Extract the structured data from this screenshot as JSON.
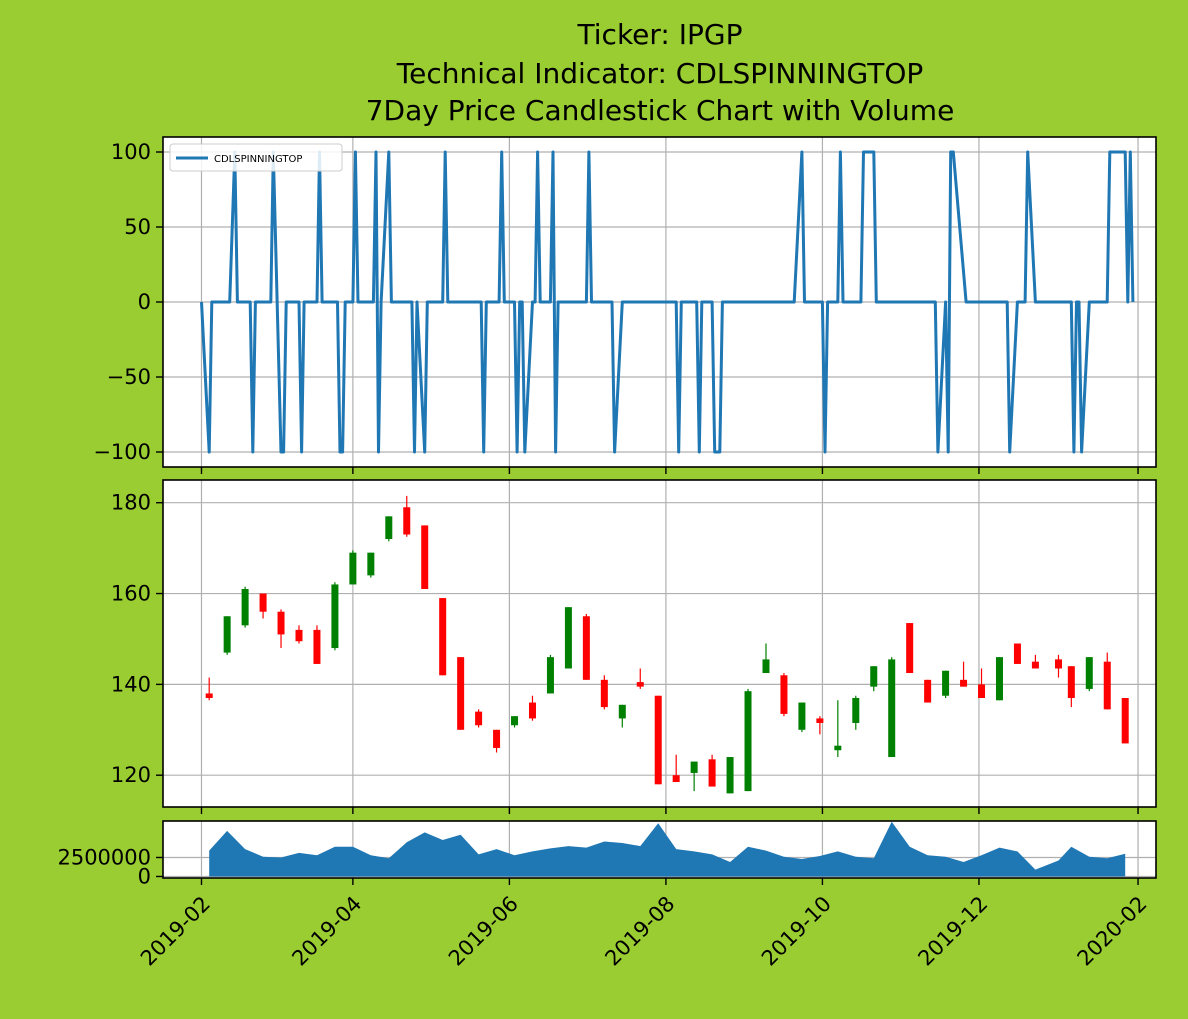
{
  "header": {
    "title_line1": "Ticker: IPGP",
    "title_line2": "Technical Indicator: CDLSPINNINGTOP",
    "title_line3": "7Day Price Candlestick Chart with Volume"
  },
  "colors": {
    "background": "#9acd32",
    "indicator_line": "#1f77b4",
    "volume_fill": "#1f77b4",
    "candle_up": "#008000",
    "candle_down": "#ff0000",
    "grid": "#b0b0b0"
  },
  "chart_data": {
    "x_ticks": [
      "2019-02",
      "2019-04",
      "2019-06",
      "2019-08",
      "2019-10",
      "2019-12",
      "2020-02"
    ],
    "x_axis": {
      "type": "date",
      "range": [
        "2019-01-17",
        "2020-02-08"
      ],
      "tick_rotation": 45
    },
    "indicator": {
      "type": "line",
      "legend": "CDLSPINNINGTOP",
      "legend_position": "upper-left",
      "ylim": [
        -110,
        110
      ],
      "y_ticks": [
        100,
        50,
        0,
        -50,
        -100
      ],
      "y_tick_labels": [
        "100",
        "50",
        "0",
        "−50",
        "−100"
      ],
      "grid": true,
      "points": [
        [
          "2019-02-01",
          0
        ],
        [
          "2019-02-04",
          -100
        ],
        [
          "2019-02-05",
          0
        ],
        [
          "2019-02-12",
          0
        ],
        [
          "2019-02-14",
          100
        ],
        [
          "2019-02-15",
          0
        ],
        [
          "2019-02-20",
          0
        ],
        [
          "2019-02-21",
          -100
        ],
        [
          "2019-02-22",
          0
        ],
        [
          "2019-02-28",
          0
        ],
        [
          "2019-03-01",
          100
        ],
        [
          "2019-03-04",
          -100
        ],
        [
          "2019-03-05",
          -100
        ],
        [
          "2019-03-06",
          0
        ],
        [
          "2019-03-11",
          0
        ],
        [
          "2019-03-12",
          -100
        ],
        [
          "2019-03-13",
          0
        ],
        [
          "2019-03-18",
          0
        ],
        [
          "2019-03-19",
          100
        ],
        [
          "2019-03-20",
          0
        ],
        [
          "2019-03-26",
          0
        ],
        [
          "2019-03-27",
          -100
        ],
        [
          "2019-03-28",
          -100
        ],
        [
          "2019-03-29",
          0
        ],
        [
          "2019-04-01",
          0
        ],
        [
          "2019-04-02",
          100
        ],
        [
          "2019-04-03",
          0
        ],
        [
          "2019-04-09",
          0
        ],
        [
          "2019-04-10",
          100
        ],
        [
          "2019-04-11",
          -100
        ],
        [
          "2019-04-12",
          0
        ],
        [
          "2019-04-15",
          100
        ],
        [
          "2019-04-16",
          0
        ],
        [
          "2019-04-24",
          0
        ],
        [
          "2019-04-25",
          -100
        ],
        [
          "2019-04-26",
          0
        ],
        [
          "2019-04-29",
          -100
        ],
        [
          "2019-04-30",
          0
        ],
        [
          "2019-05-06",
          0
        ],
        [
          "2019-05-07",
          100
        ],
        [
          "2019-05-08",
          0
        ],
        [
          "2019-05-21",
          0
        ],
        [
          "2019-05-22",
          -100
        ],
        [
          "2019-05-23",
          0
        ],
        [
          "2019-05-28",
          0
        ],
        [
          "2019-05-29",
          100
        ],
        [
          "2019-05-30",
          0
        ],
        [
          "2019-06-03",
          0
        ],
        [
          "2019-06-04",
          -100
        ],
        [
          "2019-06-05",
          0
        ],
        [
          "2019-06-06",
          0
        ],
        [
          "2019-06-07",
          -100
        ],
        [
          "2019-06-10",
          0
        ],
        [
          "2019-06-11",
          0
        ],
        [
          "2019-06-12",
          100
        ],
        [
          "2019-06-13",
          0
        ],
        [
          "2019-06-17",
          0
        ],
        [
          "2019-06-18",
          100
        ],
        [
          "2019-06-19",
          -100
        ],
        [
          "2019-06-20",
          0
        ],
        [
          "2019-07-01",
          0
        ],
        [
          "2019-07-02",
          100
        ],
        [
          "2019-07-03",
          0
        ],
        [
          "2019-07-11",
          0
        ],
        [
          "2019-07-12",
          -100
        ],
        [
          "2019-07-15",
          0
        ],
        [
          "2019-08-05",
          0
        ],
        [
          "2019-08-06",
          -100
        ],
        [
          "2019-08-07",
          0
        ],
        [
          "2019-08-13",
          0
        ],
        [
          "2019-08-14",
          -100
        ],
        [
          "2019-08-15",
          0
        ],
        [
          "2019-08-19",
          0
        ],
        [
          "2019-08-20",
          -100
        ],
        [
          "2019-08-22",
          -100
        ],
        [
          "2019-08-23",
          0
        ],
        [
          "2019-09-20",
          0
        ],
        [
          "2019-09-23",
          100
        ],
        [
          "2019-09-24",
          0
        ],
        [
          "2019-10-01",
          0
        ],
        [
          "2019-10-02",
          -100
        ],
        [
          "2019-10-03",
          0
        ],
        [
          "2019-10-07",
          0
        ],
        [
          "2019-10-08",
          100
        ],
        [
          "2019-10-09",
          0
        ],
        [
          "2019-10-16",
          0
        ],
        [
          "2019-10-17",
          100
        ],
        [
          "2019-10-21",
          100
        ],
        [
          "2019-10-22",
          0
        ],
        [
          "2019-11-14",
          0
        ],
        [
          "2019-11-15",
          -100
        ],
        [
          "2019-11-18",
          0
        ],
        [
          "2019-11-19",
          -100
        ],
        [
          "2019-11-20",
          100
        ],
        [
          "2019-11-21",
          100
        ],
        [
          "2019-11-26",
          0
        ],
        [
          "2019-12-12",
          0
        ],
        [
          "2019-12-13",
          -100
        ],
        [
          "2019-12-16",
          0
        ],
        [
          "2019-12-19",
          0
        ],
        [
          "2019-12-20",
          100
        ],
        [
          "2019-12-23",
          0
        ],
        [
          "2020-01-06",
          0
        ],
        [
          "2020-01-07",
          -100
        ],
        [
          "2020-01-08",
          0
        ],
        [
          "2020-01-09",
          0
        ],
        [
          "2020-01-10",
          -100
        ],
        [
          "2020-01-13",
          0
        ],
        [
          "2020-01-20",
          0
        ],
        [
          "2020-01-21",
          100
        ],
        [
          "2020-01-27",
          100
        ],
        [
          "2020-01-28",
          0
        ],
        [
          "2020-01-29",
          100
        ],
        [
          "2020-01-30",
          0
        ]
      ]
    },
    "candles": {
      "type": "candlestick",
      "ylim": [
        113,
        185
      ],
      "y_ticks": [
        120,
        140,
        160,
        180
      ],
      "grid": true,
      "ohlc": [
        [
          "2019-02-04",
          138,
          141.5,
          136.5,
          137
        ],
        [
          "2019-02-11",
          147,
          155,
          146.5,
          155
        ],
        [
          "2019-02-18",
          153,
          161.5,
          152.5,
          161
        ],
        [
          "2019-02-25",
          160,
          160,
          154.5,
          156
        ],
        [
          "2019-03-04",
          156,
          156.5,
          148,
          151
        ],
        [
          "2019-03-11",
          152,
          153,
          149,
          149.5
        ],
        [
          "2019-03-18",
          152,
          153,
          144.5,
          144.5
        ],
        [
          "2019-03-25",
          148,
          162.5,
          147.5,
          162
        ],
        [
          "2019-04-01",
          162,
          169.5,
          162,
          169
        ],
        [
          "2019-04-08",
          164,
          169,
          163.5,
          169
        ],
        [
          "2019-04-15",
          172,
          177,
          171.5,
          177
        ],
        [
          "2019-04-22",
          179,
          181.5,
          172.5,
          173
        ],
        [
          "2019-04-29",
          175,
          175,
          161,
          161
        ],
        [
          "2019-05-06",
          159,
          159,
          142,
          142
        ],
        [
          "2019-05-13",
          146,
          146,
          130,
          130
        ],
        [
          "2019-05-20",
          134,
          134.5,
          130.5,
          131
        ],
        [
          "2019-05-27",
          130,
          130,
          125,
          126
        ],
        [
          "2019-06-03",
          131,
          133,
          130.5,
          133
        ],
        [
          "2019-06-10",
          136,
          137.5,
          132,
          132.5
        ],
        [
          "2019-06-17",
          138,
          146.5,
          138,
          146
        ],
        [
          "2019-06-24",
          143.5,
          157,
          143.5,
          157
        ],
        [
          "2019-07-01",
          155,
          155.5,
          141,
          141
        ],
        [
          "2019-07-08",
          141,
          142,
          134.5,
          135
        ],
        [
          "2019-07-15",
          132.5,
          135.5,
          130.5,
          135.5
        ],
        [
          "2019-07-22",
          140.5,
          143.5,
          139,
          139.5
        ],
        [
          "2019-07-29",
          137.5,
          137.5,
          118,
          118
        ],
        [
          "2019-08-05",
          120,
          124.5,
          118.5,
          118.5
        ],
        [
          "2019-08-12",
          120.5,
          123,
          116.5,
          123
        ],
        [
          "2019-08-19",
          123.5,
          124.5,
          117.5,
          117.5
        ],
        [
          "2019-08-26",
          116,
          124,
          116,
          124
        ],
        [
          "2019-09-02",
          116.5,
          139,
          116.5,
          138.5
        ],
        [
          "2019-09-09",
          142.5,
          149,
          142.5,
          145.5
        ],
        [
          "2019-09-16",
          142,
          142.5,
          133,
          133.5
        ],
        [
          "2019-09-23",
          130,
          136,
          129.5,
          136
        ],
        [
          "2019-09-30",
          132.5,
          133,
          129,
          131.5
        ],
        [
          "2019-10-07",
          125.5,
          136.5,
          124,
          126.5
        ],
        [
          "2019-10-14",
          131.5,
          137.5,
          130,
          137
        ],
        [
          "2019-10-21",
          139.5,
          144,
          138.5,
          144
        ],
        [
          "2019-10-28",
          124,
          146,
          124,
          145.5
        ],
        [
          "2019-11-04",
          153.5,
          153.5,
          142.5,
          142.5
        ],
        [
          "2019-11-11",
          141,
          141,
          136,
          136
        ],
        [
          "2019-11-18",
          137.5,
          143,
          137,
          143
        ],
        [
          "2019-11-25",
          141,
          145,
          139.5,
          139.5
        ],
        [
          "2019-12-02",
          140,
          143.5,
          137,
          137
        ],
        [
          "2019-12-09",
          136.5,
          146,
          136.5,
          146
        ],
        [
          "2019-12-16",
          149,
          149,
          144.5,
          144.5
        ],
        [
          "2019-12-23",
          145,
          146.5,
          143.5,
          143.5
        ],
        [
          "2020-01-01",
          145.5,
          146.5,
          141.5,
          143.5
        ],
        [
          "2020-01-06",
          144,
          144,
          135,
          137
        ],
        [
          "2020-01-13",
          139,
          146,
          138.5,
          146
        ],
        [
          "2020-01-20",
          145,
          147,
          134.5,
          134.5
        ],
        [
          "2020-01-27",
          137,
          137,
          127,
          127
        ]
      ]
    },
    "volume": {
      "type": "area",
      "ylim": [
        -200000,
        7300000
      ],
      "y_ticks": [
        0,
        2500000
      ],
      "grid": true,
      "points": [
        [
          "2019-02-04",
          3400000
        ],
        [
          "2019-02-11",
          6000000
        ],
        [
          "2019-02-18",
          3600000
        ],
        [
          "2019-02-25",
          2600000
        ],
        [
          "2019-03-04",
          2500000
        ],
        [
          "2019-03-11",
          3100000
        ],
        [
          "2019-03-18",
          2800000
        ],
        [
          "2019-03-25",
          3900000
        ],
        [
          "2019-04-01",
          3900000
        ],
        [
          "2019-04-08",
          2800000
        ],
        [
          "2019-04-15",
          2400000
        ],
        [
          "2019-04-22",
          4500000
        ],
        [
          "2019-04-29",
          5800000
        ],
        [
          "2019-05-06",
          4800000
        ],
        [
          "2019-05-13",
          5500000
        ],
        [
          "2019-05-20",
          2900000
        ],
        [
          "2019-05-27",
          3600000
        ],
        [
          "2019-06-03",
          2800000
        ],
        [
          "2019-06-10",
          3300000
        ],
        [
          "2019-06-17",
          3700000
        ],
        [
          "2019-06-24",
          4000000
        ],
        [
          "2019-07-01",
          3800000
        ],
        [
          "2019-07-08",
          4600000
        ],
        [
          "2019-07-15",
          4400000
        ],
        [
          "2019-07-22",
          4000000
        ],
        [
          "2019-07-29",
          7000000
        ],
        [
          "2019-08-05",
          3600000
        ],
        [
          "2019-08-12",
          3300000
        ],
        [
          "2019-08-19",
          2900000
        ],
        [
          "2019-08-26",
          1900000
        ],
        [
          "2019-09-02",
          3900000
        ],
        [
          "2019-09-09",
          3400000
        ],
        [
          "2019-09-16",
          2600000
        ],
        [
          "2019-09-23",
          2300000
        ],
        [
          "2019-09-30",
          2700000
        ],
        [
          "2019-10-07",
          3300000
        ],
        [
          "2019-10-14",
          2600000
        ],
        [
          "2019-10-21",
          2400000
        ],
        [
          "2019-10-28",
          7200000
        ],
        [
          "2019-11-04",
          3900000
        ],
        [
          "2019-11-11",
          2800000
        ],
        [
          "2019-11-18",
          2600000
        ],
        [
          "2019-11-25",
          1900000
        ],
        [
          "2019-12-02",
          2800000
        ],
        [
          "2019-12-09",
          3800000
        ],
        [
          "2019-12-16",
          3300000
        ],
        [
          "2019-12-23",
          900000
        ],
        [
          "2020-01-01",
          2100000
        ],
        [
          "2020-01-06",
          3900000
        ],
        [
          "2020-01-13",
          2600000
        ],
        [
          "2020-01-20",
          2400000
        ],
        [
          "2020-01-27",
          3000000
        ]
      ]
    }
  }
}
